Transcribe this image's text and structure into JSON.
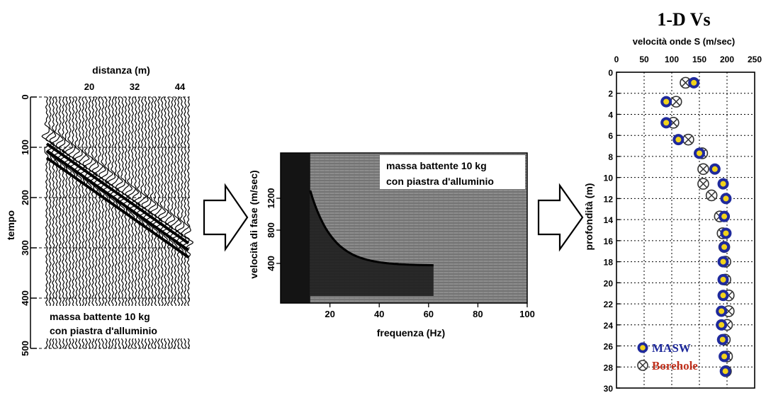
{
  "chart_data": [
    {
      "type": "line",
      "name": "seismogram",
      "xlabel": "distanza (m)",
      "ylabel": "tempo",
      "xticks": [
        "20",
        "32",
        "44"
      ],
      "yticks": [
        "0",
        "100",
        "200",
        "300",
        "400",
        "500"
      ],
      "ylim": [
        0,
        500
      ],
      "annotation": [
        "massa battente 10 kg",
        "con piastra d'alluminio"
      ]
    },
    {
      "type": "heatmap",
      "name": "dispersion-image",
      "xlabel": "frequenza (Hz)",
      "ylabel": "velocità di fase (m/sec)",
      "xticks": [
        "20",
        "40",
        "60",
        "80",
        "100"
      ],
      "yticks": [
        "400",
        "800",
        "1200"
      ],
      "xlim": [
        0,
        100
      ],
      "annotation": [
        "massa battente 10 kg",
        "con piastra d'alluminio"
      ]
    },
    {
      "type": "scatter",
      "name": "vs-profile",
      "title": "1-D Vs",
      "xlabel": "velocità onde S (m/sec)",
      "ylabel": "profondità (m)",
      "xticks": [
        "0",
        "50",
        "100",
        "150",
        "200",
        "250"
      ],
      "yticks": [
        "0",
        "2",
        "4",
        "6",
        "8",
        "10",
        "12",
        "14",
        "16",
        "18",
        "20",
        "22",
        "24",
        "26",
        "28",
        "30"
      ],
      "xlim": [
        0,
        250
      ],
      "ylim": [
        0,
        30
      ],
      "series": [
        {
          "name": "MASW",
          "color": "#1f2a9c",
          "points": [
            [
              140,
              1
            ],
            [
              90,
              2.8
            ],
            [
              90,
              4.8
            ],
            [
              112,
              6.4
            ],
            [
              150,
              7.7
            ],
            [
              178,
              9.2
            ],
            [
              193,
              10.6
            ],
            [
              198,
              12
            ],
            [
              195,
              13.7
            ],
            [
              198,
              15.3
            ],
            [
              195,
              16.6
            ],
            [
              193,
              18
            ],
            [
              193,
              19.7
            ],
            [
              193,
              21.2
            ],
            [
              190,
              22.7
            ],
            [
              190,
              24
            ],
            [
              192,
              25.4
            ],
            [
              195,
              27
            ],
            [
              197,
              28.4
            ]
          ]
        },
        {
          "name": "Borehole",
          "color": "#c0301c",
          "points": [
            [
              125,
              1
            ],
            [
              108,
              2.8
            ],
            [
              103,
              4.8
            ],
            [
              130,
              6.4
            ],
            [
              155,
              7.7
            ],
            [
              157,
              9.2
            ],
            [
              157,
              10.6
            ],
            [
              172,
              11.7
            ],
            [
              187,
              13.7
            ],
            [
              192,
              15.3
            ],
            [
              195,
              16.6
            ],
            [
              197,
              18
            ],
            [
              197,
              19.7
            ],
            [
              203,
              21.2
            ],
            [
              203,
              22.7
            ],
            [
              200,
              24
            ],
            [
              196,
              25.4
            ],
            [
              200,
              27
            ],
            [
              198,
              28.4
            ]
          ]
        }
      ]
    }
  ]
}
